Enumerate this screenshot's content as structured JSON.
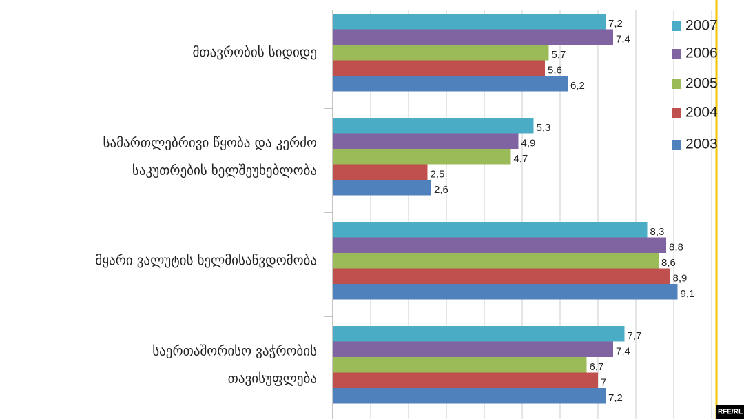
{
  "chart_data": {
    "type": "hbar",
    "categories": [
      "მთავრობის სიდიდე",
      "სამართლებრივი წყობა და კერძო\nსაკუთრების ხელშეუხებლობა",
      "მყარი ვალუტის ხელმისაწვდომობა",
      "საერთაშორისო ვაჭრობის\nთავისუფლება"
    ],
    "series": [
      {
        "name": "2007",
        "color": "#4bacc6",
        "values": [
          7.2,
          5.3,
          8.3,
          7.7
        ],
        "value_labels": [
          "7,2",
          "5,3",
          "8,3",
          "7,7"
        ]
      },
      {
        "name": "2006",
        "color": "#8064a2",
        "values": [
          7.4,
          4.9,
          8.8,
          7.4
        ],
        "value_labels": [
          "7,4",
          "4,9",
          "8,8",
          "7,4"
        ]
      },
      {
        "name": "2005",
        "color": "#9bbb59",
        "values": [
          5.7,
          4.7,
          8.6,
          6.7
        ],
        "value_labels": [
          "5,7",
          "4,7",
          "8,6",
          "6,7"
        ]
      },
      {
        "name": "2004",
        "color": "#c0504d",
        "values": [
          5.6,
          2.5,
          8.9,
          7
        ],
        "value_labels": [
          "5,6",
          "2,5",
          "8,9",
          "7"
        ]
      },
      {
        "name": "2003",
        "color": "#4f81bd",
        "values": [
          6.2,
          2.6,
          9.1,
          7.2
        ],
        "value_labels": [
          "6,2",
          "2,6",
          "9,1",
          "7,2"
        ]
      }
    ],
    "xlim": [
      0,
      10
    ],
    "xticks": [
      0,
      1,
      2,
      3,
      4,
      5,
      6,
      7,
      8,
      9,
      10
    ],
    "grid": true,
    "legend": "right",
    "watermark": "RFE/RL"
  }
}
